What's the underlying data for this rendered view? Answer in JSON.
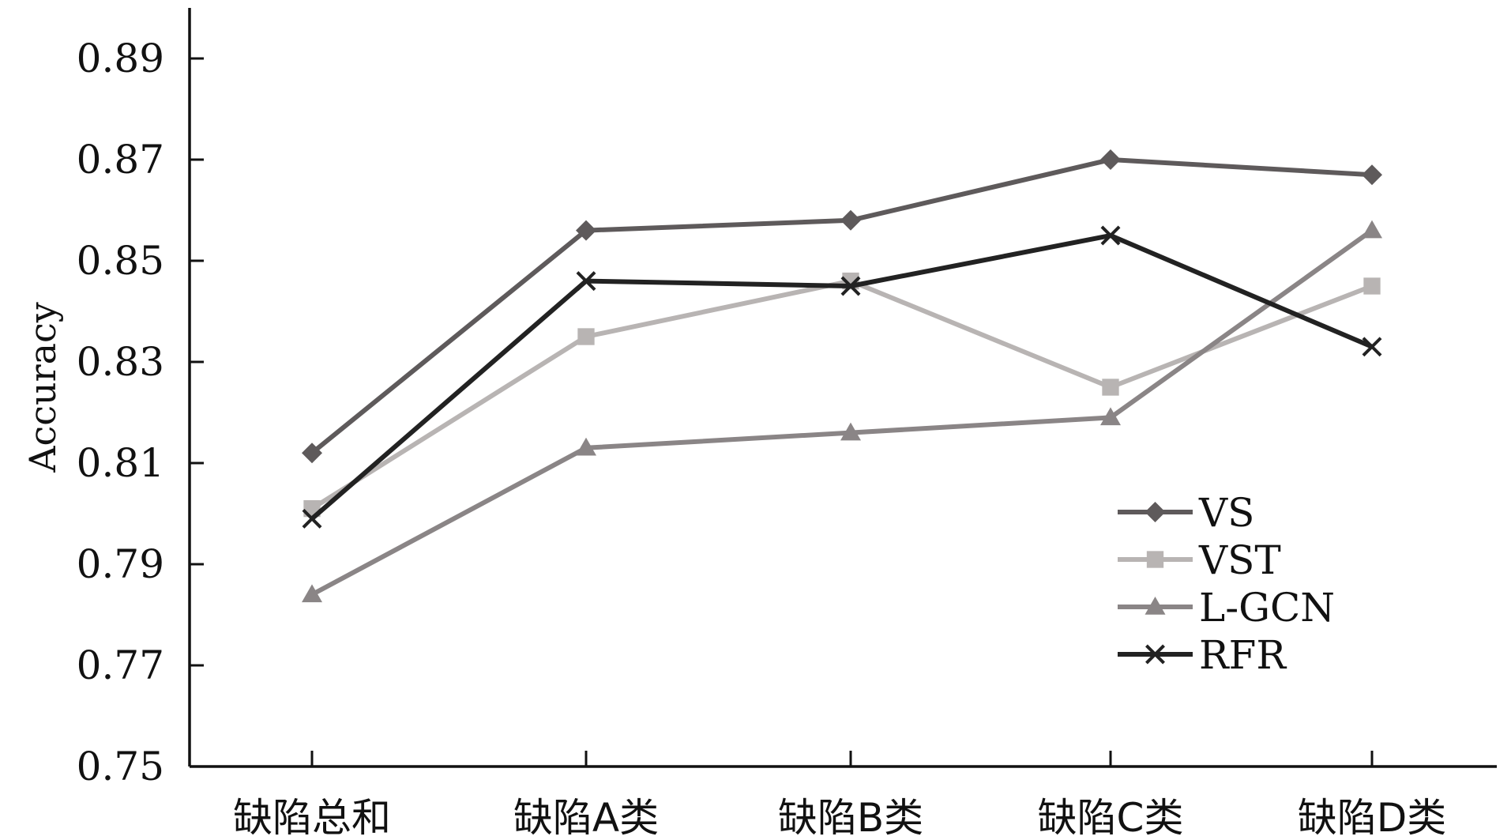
{
  "chart_data": {
    "type": "line",
    "categories": [
      "缺陷总和",
      "缺陷A类",
      "缺陷B类",
      "缺陷C类",
      "缺陷D类"
    ],
    "ylabel": "Accuracy",
    "xlabel": "",
    "ylim": [
      0.75,
      0.9
    ],
    "yticks": [
      "0.75",
      "0.77",
      "0.79",
      "0.81",
      "0.83",
      "0.85",
      "0.87",
      "0.89"
    ],
    "grid": false,
    "legend_position": "lower-right",
    "series": [
      {
        "name": "VS",
        "marker": "diamond",
        "color": "#5e5a5b",
        "values": [
          0.812,
          0.856,
          0.858,
          0.87,
          0.867
        ]
      },
      {
        "name": "VST",
        "marker": "square",
        "color": "#b8b4b3",
        "values": [
          0.801,
          0.835,
          0.846,
          0.825,
          0.845
        ]
      },
      {
        "name": "L-GCN",
        "marker": "triangle",
        "color": "#8a8586",
        "values": [
          0.784,
          0.813,
          0.816,
          0.819,
          0.856
        ]
      },
      {
        "name": "RFR",
        "marker": "x",
        "color": "#222222",
        "values": [
          0.799,
          0.846,
          0.845,
          0.855,
          0.833
        ]
      }
    ]
  }
}
